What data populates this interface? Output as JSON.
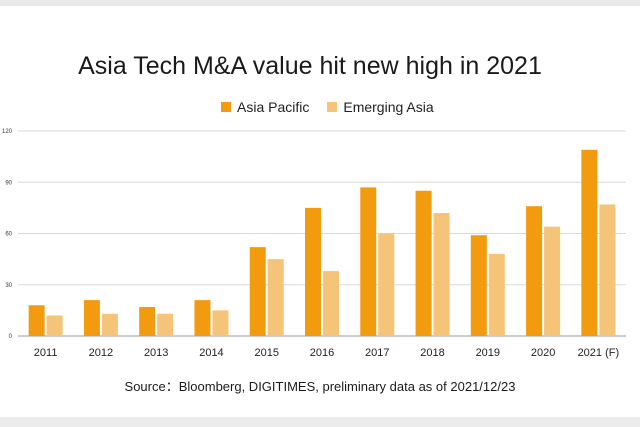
{
  "chart_data": {
    "type": "bar",
    "title": "Asia Tech M&A value hit new high in 2021",
    "categories": [
      "2011",
      "2012",
      "2013",
      "2014",
      "2015",
      "2016",
      "2017",
      "2018",
      "2019",
      "2020",
      "2021 (F)"
    ],
    "series": [
      {
        "name": "Asia Pacific",
        "color": "#f29b0e",
        "values": [
          18,
          21,
          17,
          21,
          52,
          75,
          87,
          85,
          59,
          76,
          109
        ]
      },
      {
        "name": "Emerging Asia",
        "color": "#f6c478",
        "values": [
          12,
          13,
          13,
          15,
          45,
          38,
          60,
          72,
          48,
          64,
          77
        ]
      }
    ],
    "yticks": [
      "0",
      "30",
      "60",
      "90",
      "120"
    ],
    "ylim": [
      0,
      120
    ],
    "grid": true,
    "legend_position": "top"
  },
  "source": "Source：Bloomberg, DIGITIMES, preliminary data as of 2021/12/23"
}
